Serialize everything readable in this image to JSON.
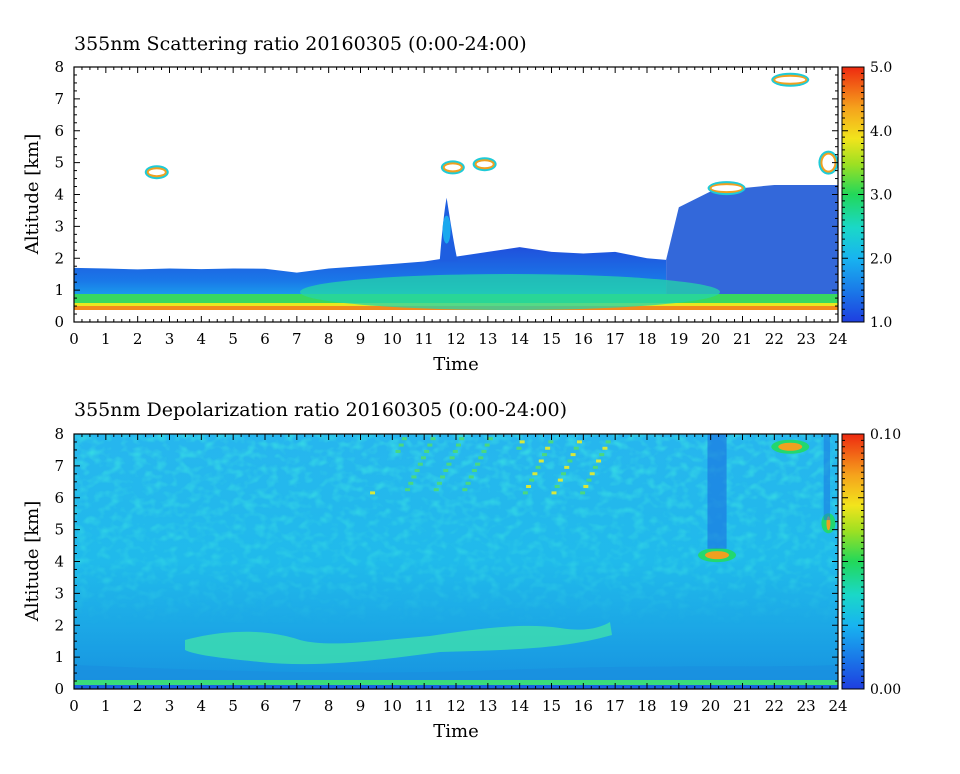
{
  "chart_data": [
    {
      "type": "heatmap",
      "title": "355nm Scattering ratio  20160305 (0:00-24:00)",
      "xlabel": "Time",
      "ylabel": "Altitude [km]",
      "xlim": [
        0,
        24
      ],
      "ylim": [
        0,
        8
      ],
      "x_ticks": [
        "0",
        "1",
        "2",
        "3",
        "4",
        "5",
        "6",
        "7",
        "8",
        "9",
        "10",
        "11",
        "12",
        "13",
        "14",
        "15",
        "16",
        "17",
        "18",
        "19",
        "20",
        "21",
        "22",
        "23",
        "24"
      ],
      "y_ticks": [
        "0",
        "1",
        "2",
        "3",
        "4",
        "5",
        "6",
        "7",
        "8"
      ],
      "colorbar": {
        "min": 1.0,
        "max": 5.0,
        "tick_labels": [
          "1.0",
          "2.0",
          "3.0",
          "4.0",
          "5.0"
        ]
      },
      "boundary_layer_top_km": [
        [
          0,
          1.7
        ],
        [
          1,
          1.68
        ],
        [
          2,
          1.65
        ],
        [
          3,
          1.68
        ],
        [
          4,
          1.66
        ],
        [
          5,
          1.68
        ],
        [
          6,
          1.67
        ],
        [
          7,
          1.55
        ],
        [
          8,
          1.68
        ],
        [
          9,
          1.75
        ],
        [
          10,
          1.82
        ],
        [
          11,
          1.9
        ],
        [
          12,
          2.05
        ],
        [
          13,
          2.2
        ],
        [
          14,
          2.35
        ],
        [
          15,
          2.2
        ],
        [
          16,
          2.15
        ],
        [
          17,
          2.2
        ],
        [
          18,
          2.0
        ],
        [
          18.6,
          1.95
        ],
        [
          19,
          3.6
        ],
        [
          20,
          4.1
        ],
        [
          21,
          4.2
        ],
        [
          22,
          4.3
        ],
        [
          23,
          4.3
        ],
        [
          24,
          4.3
        ]
      ],
      "features": [
        {
          "x": 11.8,
          "y": 3.2,
          "desc": "plume"
        },
        {
          "x": 11.9,
          "y": 4.85,
          "desc": "cloud"
        },
        {
          "x": 12.9,
          "y": 4.95,
          "desc": "cloud"
        },
        {
          "x": 20.5,
          "y": 4.2,
          "desc": "cloud"
        },
        {
          "x": 23.7,
          "y": 5.0,
          "desc": "cloud"
        },
        {
          "x": 22.5,
          "y": 7.6,
          "desc": "cloud"
        },
        {
          "x": 2.6,
          "y": 4.7,
          "desc": "cloud"
        }
      ]
    },
    {
      "type": "heatmap",
      "title": "355nm Depolarization ratio  20160305 (0:00-24:00)",
      "xlabel": "Time",
      "ylabel": "Altitude [km]",
      "xlim": [
        0,
        24
      ],
      "ylim": [
        0,
        8
      ],
      "x_ticks": [
        "0",
        "1",
        "2",
        "3",
        "4",
        "5",
        "6",
        "7",
        "8",
        "9",
        "10",
        "11",
        "12",
        "13",
        "14",
        "15",
        "16",
        "17",
        "18",
        "19",
        "20",
        "21",
        "22",
        "23",
        "24"
      ],
      "y_ticks": [
        "0",
        "1",
        "2",
        "3",
        "4",
        "5",
        "6",
        "7",
        "8"
      ],
      "colorbar": {
        "min": 0.0,
        "max": 0.1,
        "tick_labels": [
          "0.00",
          "0.10"
        ]
      },
      "features": [
        {
          "x": 5.0,
          "y": 1.35,
          "desc": "dust layer"
        },
        {
          "x": 20.2,
          "y": 4.2,
          "desc": "cloud"
        },
        {
          "x": 22.5,
          "y": 7.6,
          "desc": "cloud"
        },
        {
          "x": 23.7,
          "y": 5.2,
          "desc": "cloud"
        },
        {
          "x": 11.0,
          "y": 7.7,
          "desc": "noisy high altitude"
        }
      ]
    }
  ]
}
